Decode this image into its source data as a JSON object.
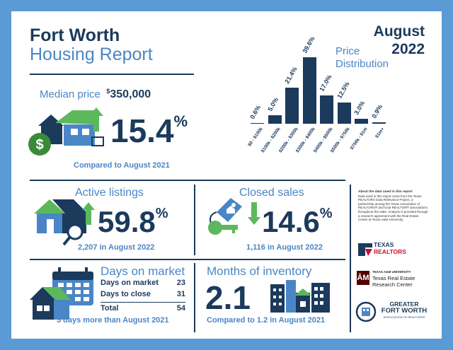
{
  "header": {
    "city": "Fort Worth",
    "subtitle": "Housing Report",
    "month": "August",
    "year": "2022"
  },
  "median": {
    "label": "Median price",
    "currency": "$",
    "value": "350,000",
    "change": "15.4",
    "change_unit": "%",
    "direction": "up",
    "comparison": "Compared to August 2021"
  },
  "active": {
    "label": "Active listings",
    "change": "59.8",
    "change_unit": "%",
    "direction": "up",
    "caption": "2,207 in August 2022"
  },
  "closed": {
    "label": "Closed sales",
    "change": "14.6",
    "change_unit": "%",
    "direction": "down",
    "caption": "1,116 in August 2022"
  },
  "dom": {
    "label": "Days on market",
    "rows": [
      {
        "label": "Days on market",
        "value": "23"
      },
      {
        "label": "Days to close",
        "value": "31"
      }
    ],
    "total_label": "Total",
    "total_value": "54",
    "caption": "3 days more than August 2021"
  },
  "inventory": {
    "label": "Months of inventory",
    "value": "2.1",
    "caption": "Compared to 1.2 in August 2021"
  },
  "about": {
    "heading": "About the data used in this report",
    "body": "Data used in this report come from the Texas REALTORS Data Relevance Project, a partnership among the Texas Association of REALTORS® and local REALTOR® associations throughout the state. Analysis is provided through a research agreement with the Real Estate Center at Texas A&M University."
  },
  "logos": {
    "realtors_line1": "TEXAS",
    "realtors_line2": "REALTORS",
    "atm_mark": "ĀM",
    "am_line1": "TEXAS A&M UNIVERSITY",
    "am_line2": "Texas Real Estate",
    "am_line3": "Research Center",
    "gfw_line1": "GREATER",
    "gfw_line2": "FORT WORTH",
    "gfw_line3": "ASSOCIATION OF REALTORS®"
  },
  "colors": {
    "navy": "#1b3a5c",
    "blue": "#4a86c5",
    "green": "#5cb85c",
    "border": "#5b9bd5"
  },
  "chart_data": {
    "type": "bar",
    "title_line1": "Price",
    "title_line2": "Distribution",
    "categories": [
      "$0 - $100k",
      "$100k - $200k",
      "$200k - $300k",
      "$300k - $400k",
      "$400k - $500k",
      "$500k - $750k",
      "$750k - $1m",
      "$1m+"
    ],
    "values": [
      0.6,
      5.0,
      21.4,
      39.6,
      17.0,
      12.5,
      3.0,
      0.9
    ],
    "value_labels": [
      "0.6%",
      "5.0%",
      "21.4%",
      "39.6%",
      "17.0%",
      "12.5%",
      "3.0%",
      "0.9%"
    ],
    "ylim": [
      0,
      40
    ],
    "grid": false
  }
}
